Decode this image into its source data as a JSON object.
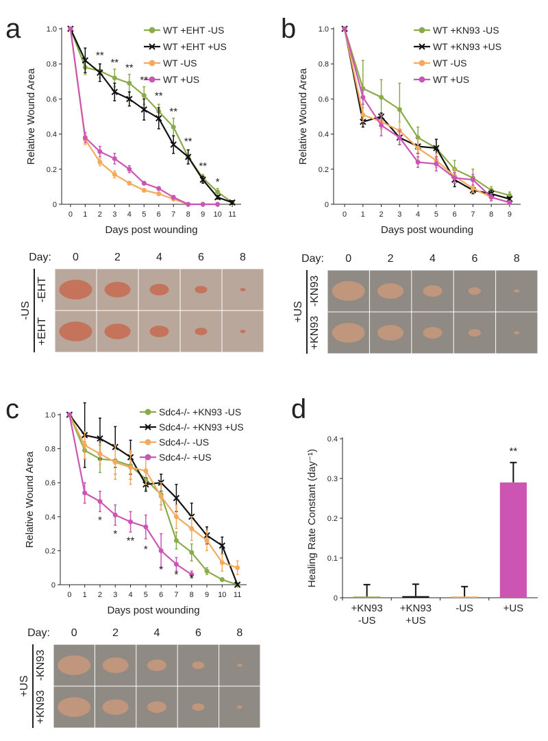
{
  "chart_data": [
    {
      "type": "line",
      "panel": "a",
      "xlabel": "Days post wounding",
      "ylabel": "Relative Wound Area",
      "x": [
        0,
        1,
        2,
        3,
        4,
        5,
        6,
        7,
        8,
        9,
        10,
        11
      ],
      "xlim": [
        -0.6,
        11.6
      ],
      "xticks": [
        0,
        1,
        2,
        3,
        4,
        5,
        6,
        7,
        8,
        9,
        10,
        11
      ],
      "ylim": [
        0,
        1
      ],
      "yticks": [
        0,
        0.2,
        0.4,
        0.6,
        0.8,
        {
          "value": 1,
          "label": "1.0"
        }
      ],
      "series": [
        {
          "name": "WT +EHT  -US",
          "color": "#8aab4a",
          "marker": "o",
          "values": [
            1,
            0.78,
            0.76,
            0.72,
            0.69,
            0.62,
            0.53,
            0.44,
            0.27,
            0.15,
            0.07,
            0.01
          ],
          "errors": [
            0,
            0.04,
            0.04,
            0.05,
            0.05,
            0.05,
            0.04,
            0.05,
            0.04,
            0.02,
            0.02,
            0.01
          ]
        },
        {
          "name": "WT +EHT +US",
          "color": "#111111",
          "marker": "x",
          "values": [
            1,
            0.82,
            0.75,
            0.64,
            0.6,
            0.54,
            0.49,
            0.34,
            0.27,
            0.14,
            0.04,
            0.01
          ],
          "errors": [
            0,
            0.07,
            0.05,
            0.05,
            0.04,
            0.06,
            0.06,
            0.05,
            0.04,
            0.02,
            0.01,
            0.01
          ]
        },
        {
          "name": "WT  -US",
          "color": "#f4a95c",
          "marker": "o",
          "values": [
            1,
            0.37,
            0.24,
            0.17,
            0.12,
            0.08,
            0.06,
            0.03,
            0,
            0,
            0,
            null
          ],
          "errors": [
            0,
            0.03,
            0.02,
            0.02,
            0.01,
            0.01,
            0.01,
            0.01,
            0,
            0,
            0,
            null
          ]
        },
        {
          "name": "WT +US",
          "color": "#cc55b4",
          "marker": "o",
          "values": [
            1,
            0.38,
            0.3,
            0.26,
            0.2,
            0.12,
            0.09,
            0.04,
            0,
            0,
            0,
            null
          ],
          "errors": [
            0,
            0.03,
            0.03,
            0.03,
            0.02,
            0.01,
            0.01,
            0.01,
            0,
            0,
            0,
            null
          ]
        }
      ],
      "annotations": [
        {
          "text": "**",
          "x": 2,
          "y": 0.83
        },
        {
          "text": "**",
          "x": 3,
          "y": 0.79
        },
        {
          "text": "**",
          "x": 4,
          "y": 0.76
        },
        {
          "text": "**",
          "x": 5,
          "y": 0.69
        },
        {
          "text": "**",
          "x": 6,
          "y": 0.6
        },
        {
          "text": "**",
          "x": 7,
          "y": 0.51
        },
        {
          "text": "**",
          "x": 8,
          "y": 0.34
        },
        {
          "text": "**",
          "x": 9,
          "y": 0.2
        },
        {
          "text": "*",
          "x": 10,
          "y": 0.11
        }
      ]
    },
    {
      "type": "line",
      "panel": "b",
      "xlabel": "Days post wounding",
      "ylabel": "Relative Wound Area",
      "x": [
        0,
        1,
        2,
        3,
        4,
        5,
        6,
        7,
        8,
        9
      ],
      "xlim": [
        -0.6,
        9.6
      ],
      "xticks": [
        0,
        1,
        2,
        3,
        4,
        5,
        6,
        7,
        8,
        9
      ],
      "ylim": [
        0,
        1
      ],
      "yticks": [
        0,
        0.2,
        0.4,
        0.6,
        0.8,
        {
          "value": 1,
          "label": "1.0"
        }
      ],
      "series": [
        {
          "name": "WT +KN93  -US",
          "color": "#8aab4a",
          "marker": "o",
          "values": [
            1,
            0.66,
            0.61,
            0.54,
            0.38,
            0.32,
            0.2,
            0.15,
            0.08,
            0.05
          ],
          "errors": [
            0,
            0.16,
            0.1,
            0.15,
            0.06,
            0.05,
            0.05,
            0.05,
            0.02,
            0.02
          ]
        },
        {
          "name": "WT +KN93 +US",
          "color": "#111111",
          "marker": "x",
          "values": [
            1,
            0.47,
            0.5,
            0.38,
            0.33,
            0.32,
            0.14,
            0.08,
            0.06,
            0.03
          ],
          "errors": [
            0,
            0.03,
            0.02,
            0.04,
            0.04,
            0.05,
            0.04,
            0.02,
            0.02,
            0.01
          ]
        },
        {
          "name": "WT  -US",
          "color": "#f4a95c",
          "marker": "o",
          "values": [
            1,
            0.51,
            0.47,
            0.42,
            0.32,
            0.25,
            0.16,
            0.09,
            0.04,
            0.01
          ],
          "errors": [
            0,
            0.04,
            0.04,
            0.05,
            0.05,
            0.04,
            0.04,
            0.02,
            0.02,
            0.01
          ]
        },
        {
          "name": "WT +US",
          "color": "#cc55b4",
          "marker": "o",
          "values": [
            1,
            0.61,
            0.45,
            0.38,
            0.24,
            0.23,
            0.15,
            0.14,
            0.04,
            0.01
          ],
          "errors": [
            0,
            0.04,
            0.06,
            0.04,
            0.03,
            0.04,
            0.03,
            0.03,
            0.02,
            0.01
          ]
        }
      ],
      "annotations": []
    },
    {
      "type": "line",
      "panel": "c",
      "xlabel": "Days post wounding",
      "ylabel": "Relative Wound Area",
      "x": [
        0,
        1,
        2,
        3,
        4,
        5,
        6,
        7,
        8,
        9,
        10,
        11
      ],
      "xlim": [
        -0.6,
        11.6
      ],
      "xticks": [
        0,
        1,
        2,
        3,
        4,
        5,
        6,
        7,
        8,
        9,
        10,
        11
      ],
      "ylim": [
        0,
        1
      ],
      "yticks": [
        0,
        0.2,
        0.4,
        0.6,
        0.8,
        {
          "value": 1,
          "label": "1.0"
        }
      ],
      "series": [
        {
          "name": "Sdc4-/- +KN93  -US",
          "color": "#8aab4a",
          "marker": "o",
          "values": [
            1,
            0.79,
            0.74,
            0.73,
            0.7,
            0.62,
            0.53,
            0.26,
            0.19,
            0.08,
            0.03,
            0
          ],
          "errors": [
            0,
            0.05,
            0.08,
            0.08,
            0.08,
            0.06,
            0.06,
            0.05,
            0.05,
            0.02,
            0.01,
            0
          ]
        },
        {
          "name": "Sdc4-/- +KN93 +US",
          "color": "#111111",
          "marker": "x",
          "values": [
            1,
            0.88,
            0.86,
            0.81,
            0.75,
            0.59,
            0.6,
            0.51,
            0.4,
            0.29,
            0.23,
            0
          ],
          "errors": [
            0,
            0.19,
            0.12,
            0.12,
            0.1,
            0.04,
            0.05,
            0.08,
            0.08,
            0.05,
            0.05,
            0
          ]
        },
        {
          "name": "Sdc4-/-  -US",
          "color": "#f4a95c",
          "marker": "o",
          "values": [
            1,
            0.82,
            0.77,
            0.72,
            0.69,
            0.67,
            0.52,
            0.4,
            0.33,
            0.26,
            0.13,
            0.1
          ],
          "errors": [
            0,
            0.08,
            0.06,
            0.1,
            0.1,
            0.08,
            0.08,
            0.07,
            0.07,
            0.06,
            0.05,
            0.04
          ]
        },
        {
          "name": "Sdc4-/- +US",
          "color": "#cc55b4",
          "marker": "o",
          "values": [
            1,
            0.54,
            0.49,
            0.41,
            0.37,
            0.34,
            0.2,
            0.12,
            0.06,
            null,
            null,
            null
          ],
          "errors": [
            0,
            0.06,
            0.06,
            0.06,
            0.06,
            0.07,
            0.1,
            0.04,
            0.02,
            null,
            null,
            null
          ]
        }
      ],
      "annotations": [
        {
          "text": "*",
          "x": 2,
          "y": 0.36
        },
        {
          "text": "*",
          "x": 3,
          "y": 0.28
        },
        {
          "text": "**",
          "x": 4,
          "y": 0.24
        },
        {
          "text": "*",
          "x": 5,
          "y": 0.19
        },
        {
          "text": "*",
          "x": 6,
          "y": 0.07
        },
        {
          "text": "*",
          "x": 7,
          "y": 0.04
        },
        {
          "text": "*",
          "x": 8,
          "y": 0.02
        }
      ]
    },
    {
      "type": "bar",
      "panel": "d",
      "ylabel": "Healing Rate Constant (day⁻¹)",
      "categories": [
        [
          "+KN93",
          "-US"
        ],
        [
          "+KN93",
          "+US"
        ],
        [
          "-US"
        ],
        [
          "+US"
        ]
      ],
      "values": [
        0.003,
        0.004,
        0.003,
        0.29
      ],
      "errors": [
        0.03,
        0.03,
        0.025,
        0.05
      ],
      "colors": [
        "#8aab4a",
        "#111111",
        "#f4a95c",
        "#cc55b4"
      ],
      "ylim": [
        0,
        0.4
      ],
      "yticks": [
        0,
        0.1,
        0.2,
        0.3,
        0.4
      ],
      "annotations": [
        {
          "text": "**",
          "x": 3,
          "y": 0.36
        }
      ]
    }
  ],
  "photo_panels": [
    {
      "day_label": "Day:",
      "days": [
        "0",
        "2",
        "4",
        "6",
        "8"
      ],
      "group": "-US",
      "rows": [
        "-EHT",
        "+EHT"
      ]
    },
    {
      "day_label": "Day:",
      "days": [
        "0",
        "2",
        "4",
        "6",
        "8"
      ],
      "group": "+US",
      "rows": [
        "-KN93",
        "+KN93"
      ]
    },
    {
      "day_label": "Day:",
      "days": [
        "0",
        "2",
        "4",
        "6",
        "8"
      ],
      "group": "+US",
      "rows": [
        "-KN93",
        "+KN93"
      ]
    }
  ]
}
